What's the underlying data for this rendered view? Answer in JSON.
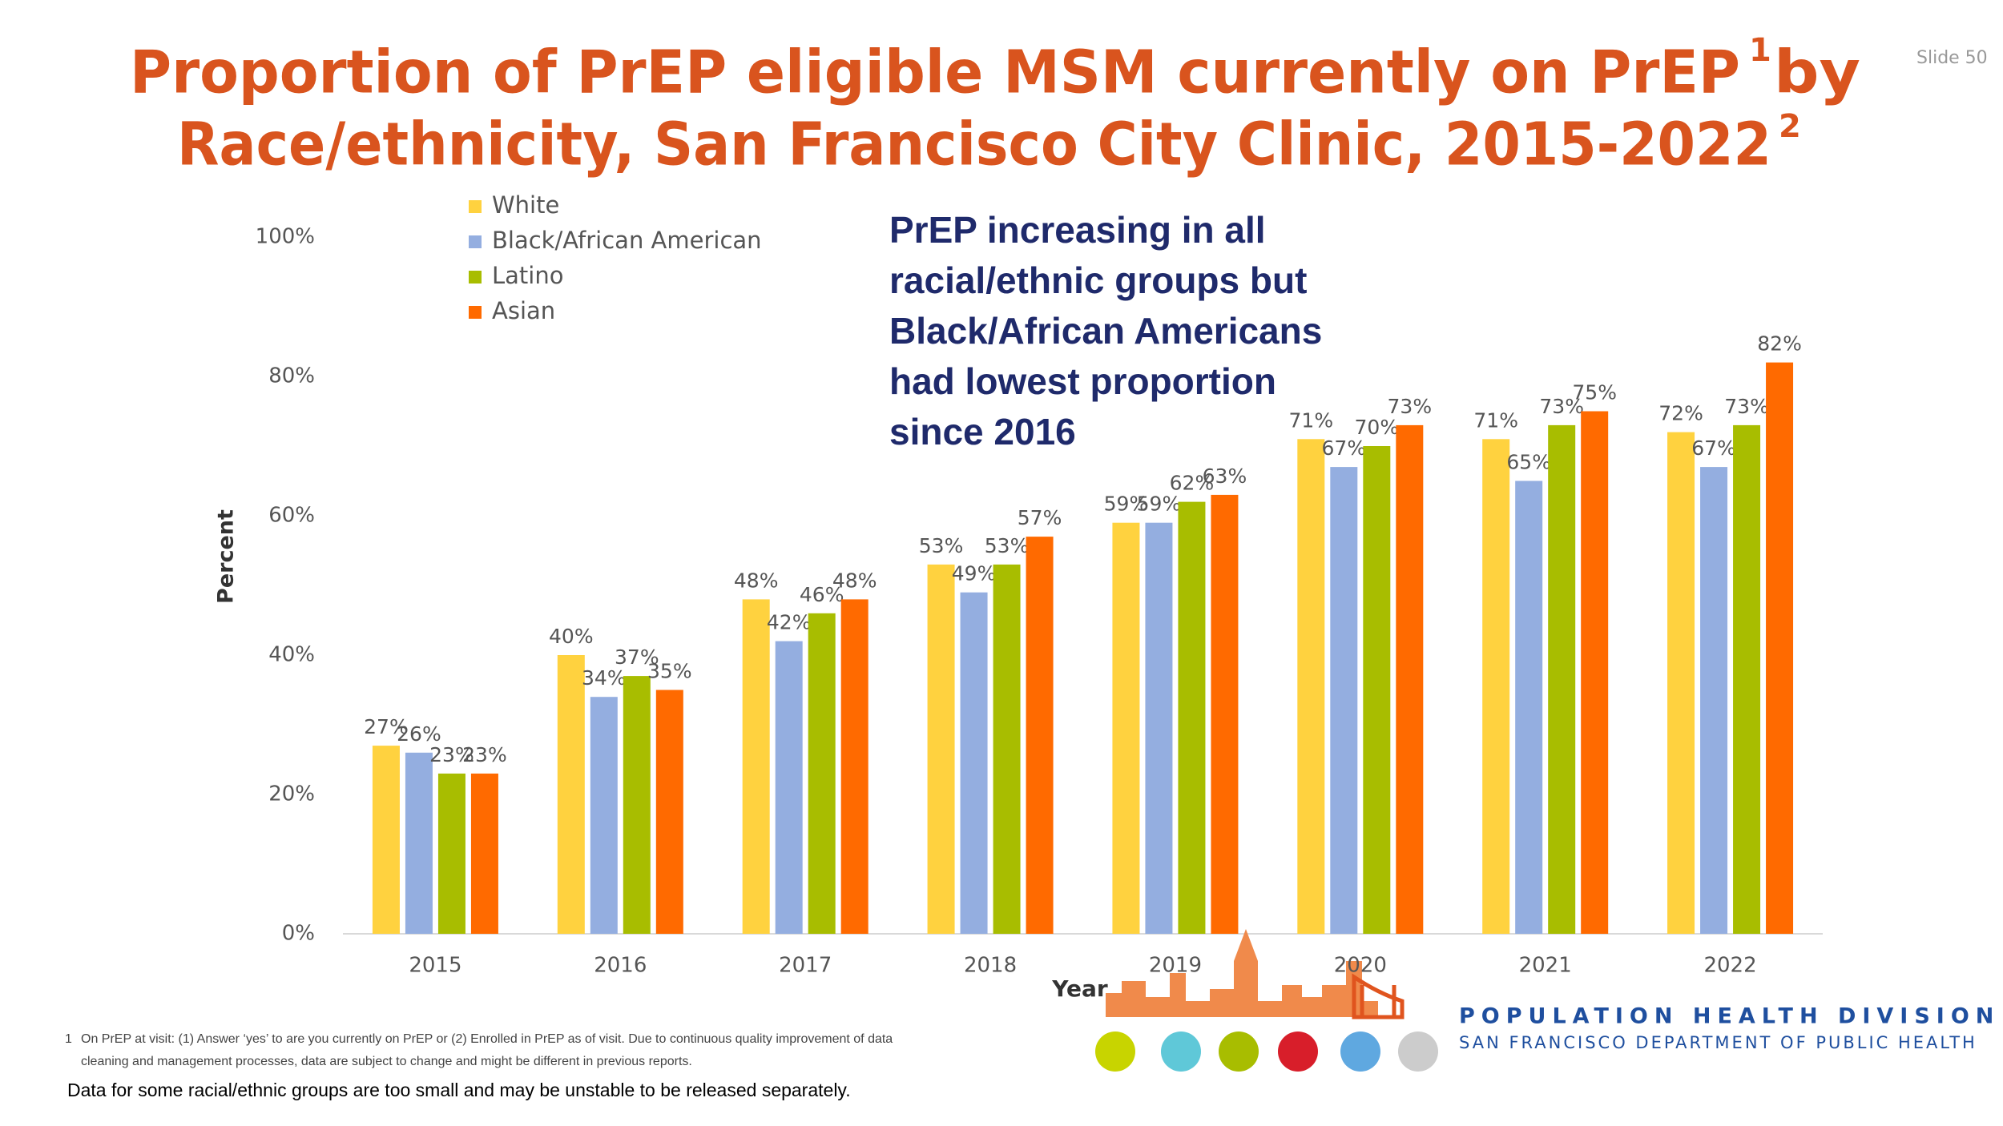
{
  "slide_number": "Slide 50",
  "title_line1": "Proportion of PrEP eligible MSM currently on PrEP",
  "title_sup1": "1",
  "title_line1_end": "by",
  "title_line2": "Race/ethnicity, San Francisco City Clinic, 2015-2022",
  "title_sup2": "2",
  "chart_data": {
    "type": "bar",
    "x_label": "Year",
    "y_label": "Percent",
    "categories": [
      "2015",
      "2016",
      "2017",
      "2018",
      "2019",
      "2020",
      "2021",
      "2022"
    ],
    "series": [
      {
        "name": "White",
        "color": "#ffd23f",
        "values": [
          27,
          40,
          48,
          53,
          59,
          71,
          71,
          72
        ],
        "value_labels": [
          "27%",
          "40%",
          "48%",
          "53%",
          "59%",
          "71%",
          "71%",
          "72%"
        ]
      },
      {
        "name": "Black/African American",
        "color": "#94aee0",
        "values": [
          26,
          34,
          42,
          49,
          59,
          67,
          65,
          67
        ],
        "value_labels": [
          "26%",
          "34%",
          "42%",
          "49%",
          "59%",
          "67%",
          "65%",
          "67%"
        ]
      },
      {
        "name": "Latino",
        "color": "#a8bd00",
        "values": [
          23,
          37,
          46,
          53,
          62,
          70,
          73,
          73
        ],
        "value_labels": [
          "23%",
          "37%",
          "46%",
          "53%",
          "62%",
          "70%",
          "73%",
          "73%"
        ]
      },
      {
        "name": "Asian",
        "color": "#ff6a00",
        "values": [
          23,
          35,
          48,
          57,
          63,
          73,
          75,
          82
        ],
        "value_labels": [
          "23%",
          "35%",
          "48%",
          "57%",
          "63%",
          "73%",
          "75%",
          "82%"
        ]
      }
    ],
    "ylim": [
      0,
      100
    ],
    "yticks": [
      {
        "value": 0,
        "label": "0%"
      },
      {
        "value": 20,
        "label": "20%"
      },
      {
        "value": 40,
        "label": "40%"
      },
      {
        "value": 60,
        "label": "60%"
      },
      {
        "value": 80,
        "label": "80%"
      },
      {
        "value": 100,
        "label": "100%"
      }
    ],
    "grid": false,
    "legend": "top-left",
    "annotation_lines": [
      "PrEP increasing in all",
      "racial/ethnic groups but",
      "Black/African Americans",
      "had lowest proportion",
      "since 2016"
    ]
  },
  "footnote_number": "1",
  "footnote_lines": [
    "On PrEP at visit: (1) Answer ‘yes’ to are you currently on PrEP or (2) Enrolled in PrEP as of visit. Due to continuous quality improvement of data",
    "cleaning and management processes, data are subject to change and might be different in previous reports."
  ],
  "note": "Data for some racial/ethnic groups are too small and may be unstable to be released separately.",
  "logo_title": "POPULATION HEALTH DIVISION",
  "logo_subtitle": "SAN FRANCISCO DEPARTMENT OF PUBLIC HEALTH"
}
